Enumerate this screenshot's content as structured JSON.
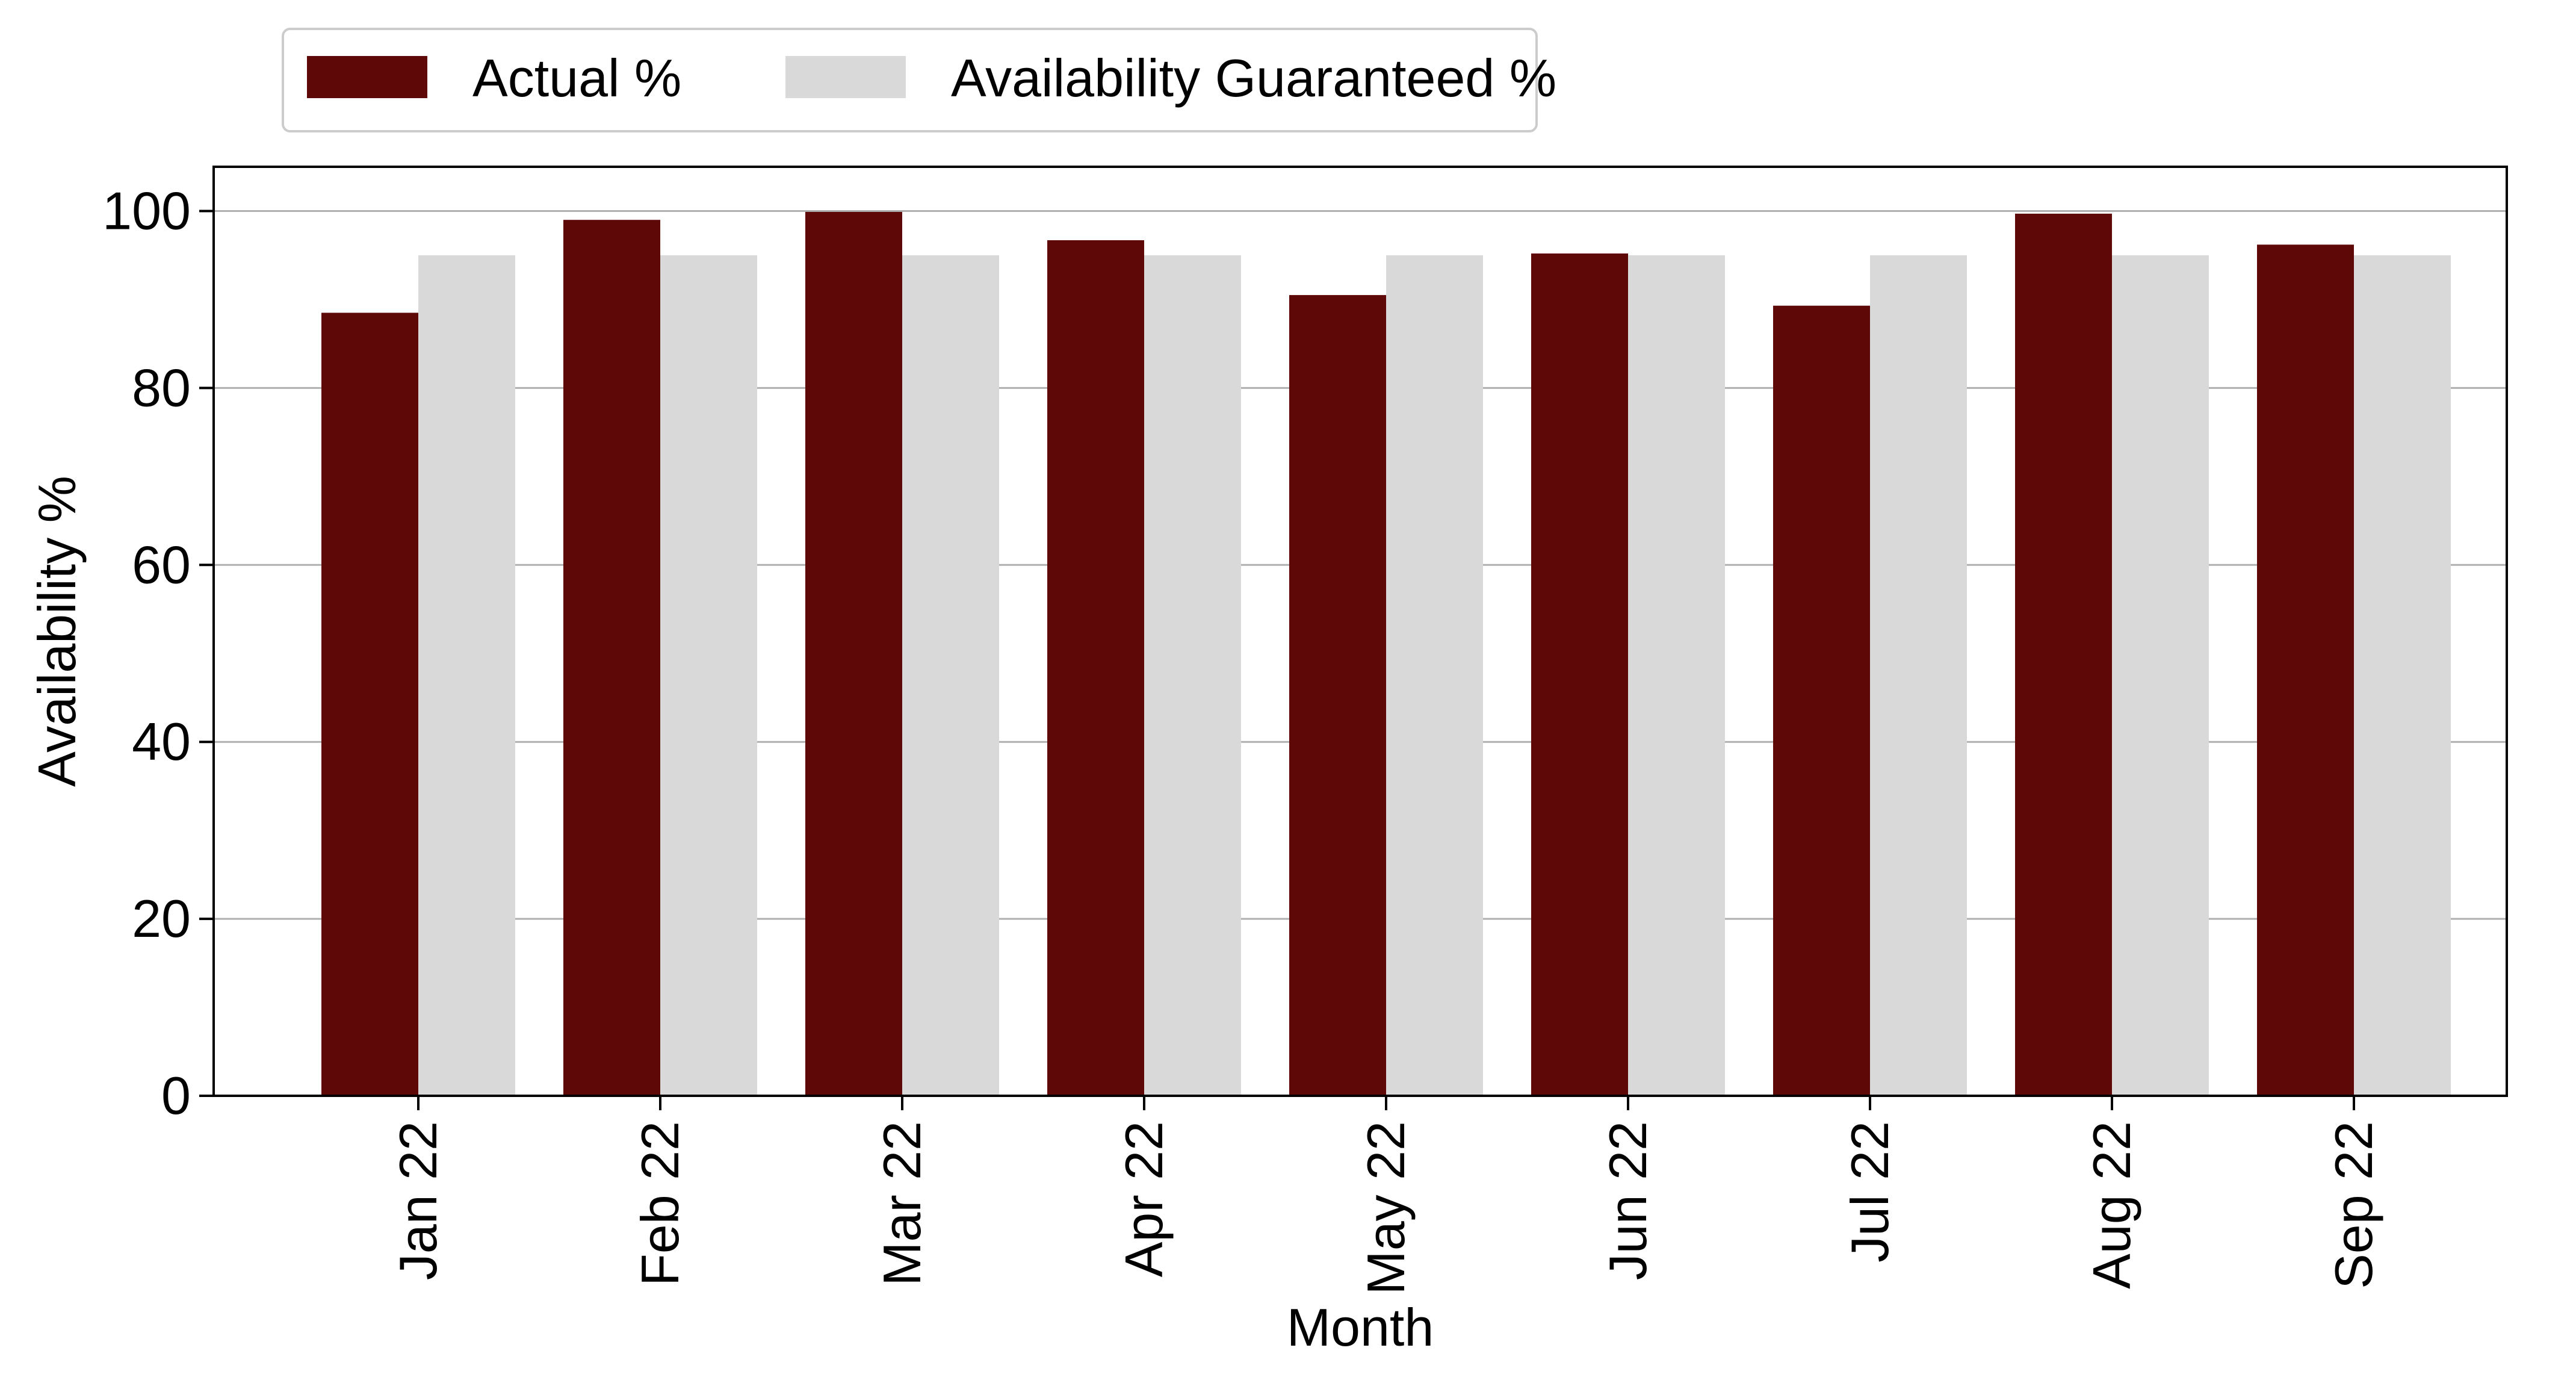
{
  "chart_data": {
    "type": "bar",
    "categories": [
      "Jan 22",
      "Feb 22",
      "Mar 22",
      "Apr 22",
      "May 22",
      "Jun 22",
      "Jul 22",
      "Aug 22",
      "Sep 22"
    ],
    "series": [
      {
        "name": "Actual %",
        "color": "#5e0808",
        "values": [
          88.5,
          99.0,
          99.9,
          96.7,
          90.5,
          95.2,
          89.3,
          99.7,
          96.2
        ]
      },
      {
        "name": "Availability Guaranteed %",
        "color": "#d9d9d9",
        "values": [
          95,
          95,
          95,
          95,
          95,
          95,
          95,
          95,
          95
        ]
      }
    ],
    "xlabel": "Month",
    "ylabel": "Availability %",
    "ylim": [
      0,
      105
    ],
    "yticks": [
      0,
      20,
      40,
      60,
      80,
      100
    ],
    "ytick_labels": [
      "0",
      "20",
      "40",
      "60",
      "80",
      "100"
    ],
    "grid": "y",
    "grid_color": "#b0b0b0",
    "legend_position": "top-left, above plot"
  }
}
